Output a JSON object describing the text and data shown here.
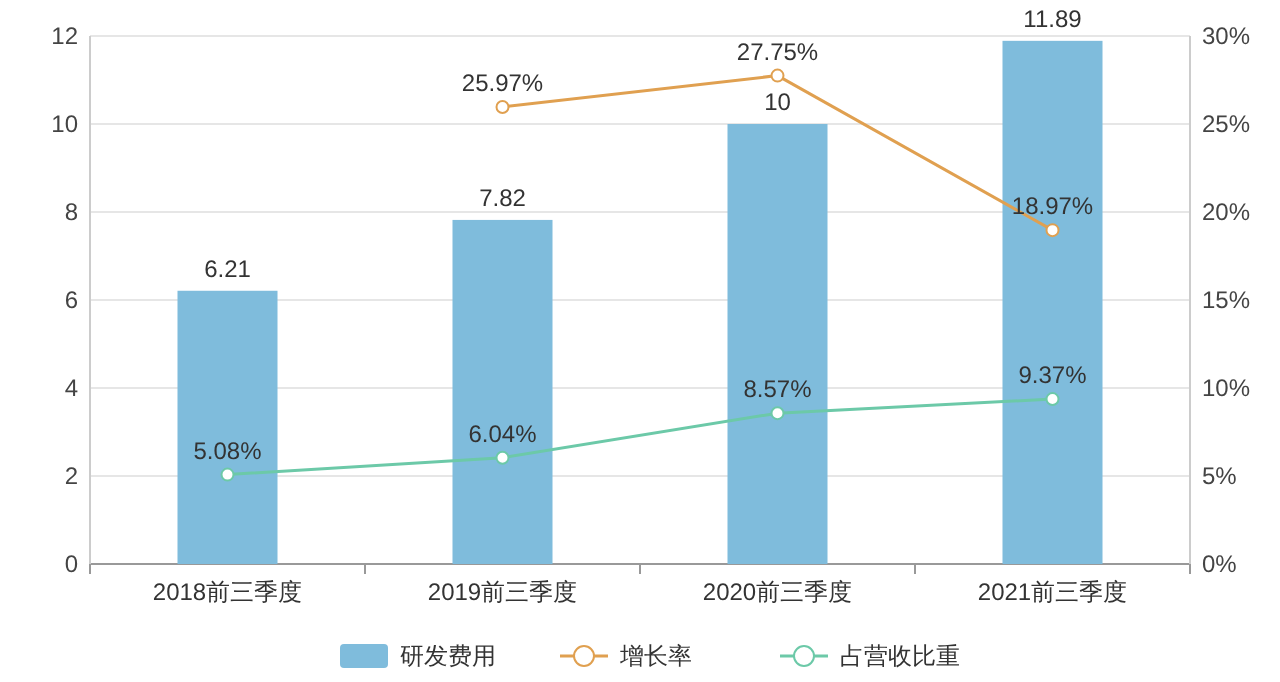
{
  "chart_data": {
    "type": "bar",
    "categories": [
      "2018前三季度",
      "2019前三季度",
      "2020前三季度",
      "2021前三季度"
    ],
    "series": [
      {
        "name": "研发费用",
        "color": "#7fbcdc",
        "values": [
          6.21,
          7.82,
          10,
          11.89
        ],
        "value_labels": [
          "6.21",
          "7.82",
          "10",
          "11.89"
        ]
      },
      {
        "name": "增长率",
        "type": "line",
        "axis": "y2",
        "color": "#e0a050",
        "values": [
          null,
          25.97,
          27.75,
          18.97
        ],
        "value_labels": [
          null,
          "25.97%",
          "27.75%",
          "18.97%"
        ]
      },
      {
        "name": "占营收比重",
        "type": "line",
        "axis": "y2",
        "color": "#6cc9a8",
        "values": [
          5.08,
          6.04,
          8.57,
          9.37
        ],
        "value_labels": [
          "5.08%",
          "6.04%",
          "8.57%",
          "9.37%"
        ]
      }
    ],
    "ylim": [
      0,
      12
    ],
    "yticks": [
      0,
      2,
      4,
      6,
      8,
      10,
      12
    ],
    "y2lim": [
      0,
      30
    ],
    "y2ticks": [
      {
        "value": 0,
        "label": "0%"
      },
      {
        "value": 5,
        "label": "5%"
      },
      {
        "value": 10,
        "label": "10%"
      },
      {
        "value": 15,
        "label": "15%"
      },
      {
        "value": 20,
        "label": "20%"
      },
      {
        "value": 25,
        "label": "25%"
      },
      {
        "value": 30,
        "label": "30%"
      }
    ],
    "grid": "y",
    "legend": "bottom",
    "marker": "circle",
    "line_style": "solid"
  }
}
